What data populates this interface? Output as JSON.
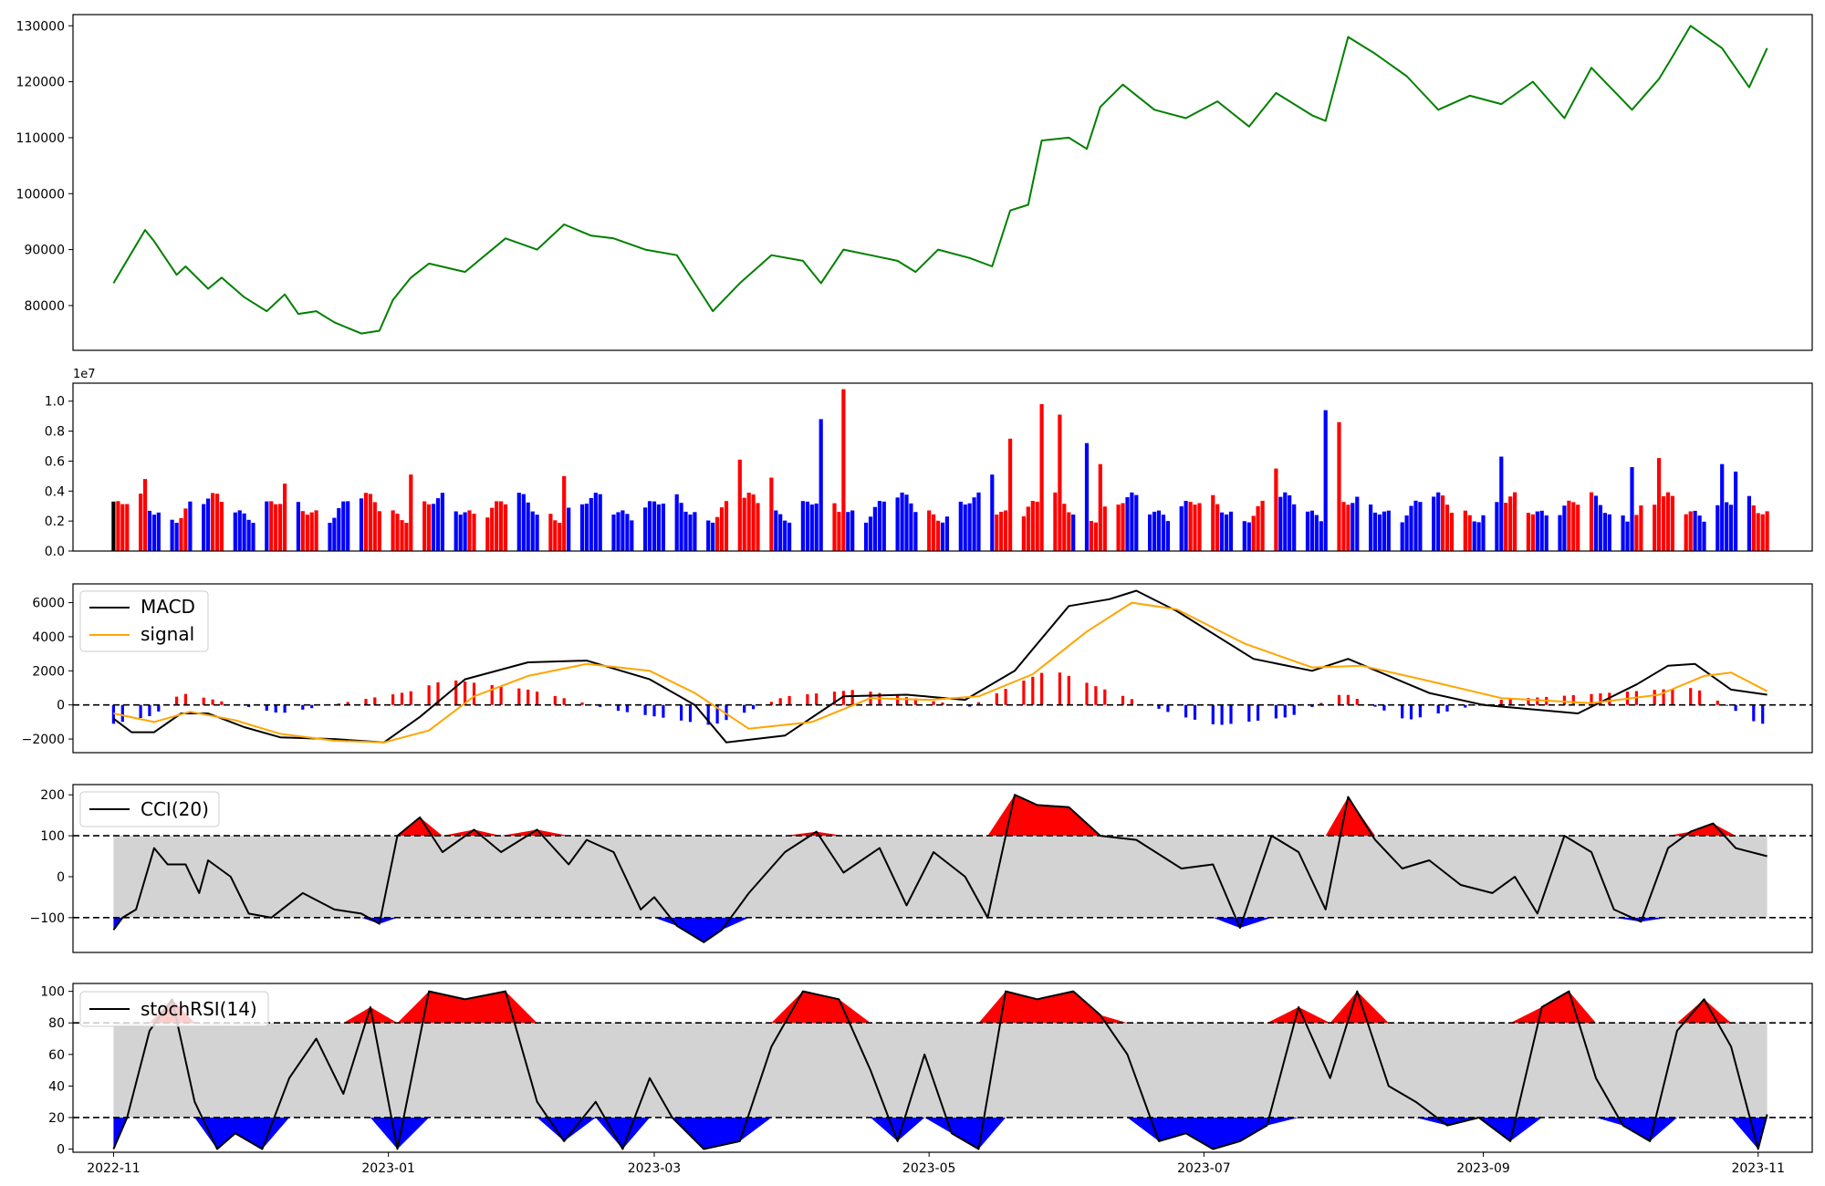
{
  "chart_data": [
    {
      "type": "line",
      "panel": "price",
      "title": "",
      "xlabel": "",
      "ylabel": "",
      "ylim": [
        72000,
        132000
      ],
      "ytick_labels": [
        "80000",
        "90000",
        "100000",
        "110000",
        "120000",
        "130000"
      ],
      "color": "#008000",
      "x": [
        "2022-11-01",
        "2022-11-08",
        "2022-11-10",
        "2022-11-15",
        "2022-11-17",
        "2022-11-22",
        "2022-11-25",
        "2022-11-30",
        "2022-12-05",
        "2022-12-09",
        "2022-12-12",
        "2022-12-16",
        "2022-12-20",
        "2022-12-26",
        "2022-12-30",
        "2023-01-02",
        "2023-01-06",
        "2023-01-10",
        "2023-01-18",
        "2023-01-27",
        "2023-02-03",
        "2023-02-09",
        "2023-02-15",
        "2023-02-20",
        "2023-02-27",
        "2023-03-06",
        "2023-03-10",
        "2023-03-14",
        "2023-03-20",
        "2023-03-27",
        "2023-04-03",
        "2023-04-07",
        "2023-04-12",
        "2023-04-18",
        "2023-04-24",
        "2023-04-28",
        "2023-05-03",
        "2023-05-10",
        "2023-05-15",
        "2023-05-19",
        "2023-05-23",
        "2023-05-26",
        "2023-06-01",
        "2023-06-05",
        "2023-06-08",
        "2023-06-13",
        "2023-06-20",
        "2023-06-27",
        "2023-07-04",
        "2023-07-11",
        "2023-07-17",
        "2023-07-25",
        "2023-07-28",
        "2023-08-02",
        "2023-08-08",
        "2023-08-15",
        "2023-08-22",
        "2023-08-29",
        "2023-09-05",
        "2023-09-12",
        "2023-09-19",
        "2023-09-25",
        "2023-10-04",
        "2023-10-10",
        "2023-10-13",
        "2023-10-17",
        "2023-10-24",
        "2023-10-30",
        "2023-11-03"
      ],
      "values": [
        84000,
        93500,
        91500,
        85500,
        87000,
        83000,
        85000,
        81500,
        79000,
        82000,
        78500,
        79000,
        77000,
        75000,
        75500,
        81000,
        85000,
        87500,
        86000,
        92000,
        90000,
        94500,
        92500,
        92000,
        90000,
        89000,
        84000,
        79000,
        84000,
        89000,
        88000,
        84000,
        90000,
        89000,
        88000,
        86000,
        90000,
        88500,
        87000,
        97000,
        98000,
        109500,
        110000,
        108000,
        115500,
        119500,
        115000,
        113500,
        116500,
        112000,
        118000,
        114000,
        113000,
        128000,
        125000,
        121000,
        115000,
        117500,
        116000,
        120000,
        113500,
        122500,
        115000,
        120500,
        124500,
        130000,
        126000,
        119000,
        126000
      ]
    },
    {
      "type": "bar",
      "panel": "volume",
      "scale_label": "1e7",
      "ylim": [
        0,
        1.12
      ],
      "ytick_labels": [
        "0.0",
        "0.2",
        "0.4",
        "0.6",
        "0.8",
        "1.0"
      ],
      "colors": {
        "up": "#ff0000",
        "down": "#0000ff",
        "flat": "#000000"
      },
      "x": [
        "2022-11-08",
        "2022-12-09",
        "2023-01-06",
        "2023-02-09",
        "2023-03-20",
        "2023-03-27",
        "2023-04-07",
        "2023-04-12",
        "2023-05-15",
        "2023-05-19",
        "2023-05-26",
        "2023-05-30",
        "2023-06-05",
        "2023-06-08",
        "2023-07-17",
        "2023-07-28",
        "2023-07-31",
        "2023-09-05",
        "2023-10-04",
        "2023-10-10",
        "2023-10-24",
        "2023-10-27"
      ],
      "values": [
        0.48,
        0.45,
        0.51,
        0.5,
        0.61,
        0.49,
        0.88,
        1.08,
        0.51,
        0.75,
        0.98,
        0.91,
        0.72,
        0.58,
        0.55,
        0.94,
        0.86,
        0.63,
        0.56,
        0.62,
        0.58,
        0.53
      ]
    },
    {
      "type": "line",
      "panel": "macd",
      "ylim": [
        -2800,
        7100
      ],
      "ytick_labels": [
        "−2000",
        "0",
        "2000",
        "4000",
        "6000"
      ],
      "zero_line": "dashed",
      "legend_position": "top-left",
      "series": [
        {
          "name": "MACD",
          "color": "#000000",
          "x": [
            "2022-11-01",
            "2022-11-05",
            "2022-11-10",
            "2022-11-16",
            "2022-11-22",
            "2022-11-30",
            "2022-12-08",
            "2022-12-20",
            "2022-12-31",
            "2023-01-08",
            "2023-01-18",
            "2023-02-01",
            "2023-02-14",
            "2023-02-28",
            "2023-03-10",
            "2023-03-17",
            "2023-03-30",
            "2023-04-12",
            "2023-04-26",
            "2023-05-09",
            "2023-05-20",
            "2023-06-01",
            "2023-06-10",
            "2023-06-16",
            "2023-06-25",
            "2023-07-12",
            "2023-07-25",
            "2023-08-02",
            "2023-08-20",
            "2023-09-01",
            "2023-09-22",
            "2023-10-05",
            "2023-10-12",
            "2023-10-18",
            "2023-10-26",
            "2023-11-03"
          ],
          "values": [
            -800,
            -1600,
            -1600,
            -500,
            -500,
            -1300,
            -1900,
            -2000,
            -2200,
            -700,
            1500,
            2500,
            2600,
            1500,
            0,
            -2200,
            -1800,
            500,
            600,
            300,
            2000,
            5800,
            6200,
            6700,
            5500,
            2700,
            2000,
            2700,
            700,
            0,
            -500,
            1200,
            2300,
            2400,
            900,
            600
          ]
        },
        {
          "name": "signal",
          "color": "#ffa500",
          "x": [
            "2022-11-01",
            "2022-11-10",
            "2022-11-18",
            "2022-11-28",
            "2022-12-08",
            "2022-12-20",
            "2022-12-31",
            "2023-01-10",
            "2023-01-20",
            "2023-02-01",
            "2023-02-14",
            "2023-02-28",
            "2023-03-10",
            "2023-03-22",
            "2023-04-05",
            "2023-04-18",
            "2023-05-01",
            "2023-05-12",
            "2023-05-24",
            "2023-06-05",
            "2023-06-15",
            "2023-06-25",
            "2023-07-10",
            "2023-07-25",
            "2023-08-05",
            "2023-08-20",
            "2023-09-05",
            "2023-09-25",
            "2023-10-10",
            "2023-10-20",
            "2023-10-26",
            "2023-11-03"
          ],
          "values": [
            -500,
            -1000,
            -400,
            -900,
            -1700,
            -2100,
            -2200,
            -1500,
            500,
            1700,
            2400,
            2000,
            700,
            -1400,
            -1000,
            400,
            300,
            500,
            1800,
            4300,
            6000,
            5600,
            3600,
            2200,
            2300,
            1400,
            400,
            100,
            600,
            1700,
            1900,
            800
          ]
        }
      ],
      "histogram": {
        "colors": {
          "positive": "#ff0000",
          "negative": "#0000ff"
        },
        "x": [
          "2022-11-01",
          "2022-11-10",
          "2022-11-16",
          "2022-12-08",
          "2023-01-06",
          "2023-01-14",
          "2023-02-01",
          "2023-02-20",
          "2023-03-14",
          "2023-03-30",
          "2023-04-15",
          "2023-05-10",
          "2023-05-20",
          "2023-05-28",
          "2023-06-08",
          "2023-06-25",
          "2023-07-04",
          "2023-07-20",
          "2023-08-01",
          "2023-08-15",
          "2023-09-05",
          "2023-10-10",
          "2023-10-18",
          "2023-11-01"
        ],
        "values": [
          -1100,
          -600,
          700,
          -500,
          800,
          1500,
          900,
          -300,
          -1200,
          500,
          900,
          -100,
          1200,
          2100,
          1000,
          -600,
          -1200,
          -700,
          700,
          -900,
          300,
          900,
          1000,
          -1100
        ]
      }
    },
    {
      "type": "line",
      "panel": "cci",
      "ylim": [
        -185,
        225
      ],
      "ytick_labels": [
        "−100",
        "0",
        "100",
        "200"
      ],
      "thresholds": [
        100,
        -100
      ],
      "band_color": "#d3d3d3",
      "above_fill": "#ff0000",
      "below_fill": "#0000ff",
      "legend_position": "top-left",
      "series": [
        {
          "name": "CCI(20)",
          "color": "#000000",
          "x": [
            "2022-11-01",
            "2022-11-03",
            "2022-11-06",
            "2022-11-10",
            "2022-11-13",
            "2022-11-17",
            "2022-11-20",
            "2022-11-22",
            "2022-11-27",
            "2022-12-01",
            "2022-12-06",
            "2022-12-13",
            "2022-12-20",
            "2022-12-26",
            "2022-12-30",
            "2023-01-03",
            "2023-01-08",
            "2023-01-13",
            "2023-01-20",
            "2023-01-26",
            "2023-02-03",
            "2023-02-10",
            "2023-02-14",
            "2023-02-20",
            "2023-02-26",
            "2023-03-01",
            "2023-03-06",
            "2023-03-12",
            "2023-03-16",
            "2023-03-22",
            "2023-03-30",
            "2023-04-06",
            "2023-04-12",
            "2023-04-20",
            "2023-04-26",
            "2023-05-02",
            "2023-05-09",
            "2023-05-14",
            "2023-05-20",
            "2023-05-25",
            "2023-06-01",
            "2023-06-08",
            "2023-06-16",
            "2023-06-26",
            "2023-07-03",
            "2023-07-09",
            "2023-07-16",
            "2023-07-22",
            "2023-07-28",
            "2023-08-02",
            "2023-08-08",
            "2023-08-14",
            "2023-08-20",
            "2023-08-27",
            "2023-09-03",
            "2023-09-08",
            "2023-09-13",
            "2023-09-19",
            "2023-09-25",
            "2023-09-30",
            "2023-10-06",
            "2023-10-12",
            "2023-10-17",
            "2023-10-22",
            "2023-10-27",
            "2023-11-03"
          ],
          "values": [
            -130,
            -100,
            -80,
            70,
            30,
            30,
            -40,
            40,
            0,
            -90,
            -100,
            -40,
            -80,
            -90,
            -115,
            100,
            145,
            60,
            115,
            60,
            115,
            30,
            90,
            60,
            -80,
            -50,
            -120,
            -160,
            -130,
            -40,
            60,
            110,
            10,
            70,
            -70,
            60,
            0,
            -100,
            200,
            175,
            170,
            100,
            90,
            20,
            30,
            -125,
            100,
            60,
            -80,
            195,
            90,
            20,
            40,
            -20,
            -40,
            0,
            -90,
            100,
            60,
            -80,
            -110,
            70,
            110,
            130,
            70,
            50
          ]
        }
      ]
    },
    {
      "type": "line",
      "panel": "stochrsi",
      "ylim": [
        -2,
        105
      ],
      "ytick_labels": [
        "0",
        "20",
        "40",
        "60",
        "80",
        "100"
      ],
      "thresholds": [
        80,
        20
      ],
      "band_color": "#d3d3d3",
      "above_fill": "#ff0000",
      "below_fill": "#0000ff",
      "legend_position": "top-left",
      "series": [
        {
          "name": "stochRSI(14)",
          "color": "#000000",
          "x": [
            "2022-11-01",
            "2022-11-04",
            "2022-11-09",
            "2022-11-14",
            "2022-11-19",
            "2022-11-24",
            "2022-11-28",
            "2022-12-04",
            "2022-12-10",
            "2022-12-16",
            "2022-12-22",
            "2022-12-28",
            "2023-01-03",
            "2023-01-10",
            "2023-01-18",
            "2023-01-27",
            "2023-02-03",
            "2023-02-09",
            "2023-02-16",
            "2023-02-22",
            "2023-02-28",
            "2023-03-05",
            "2023-03-12",
            "2023-03-20",
            "2023-03-27",
            "2023-04-03",
            "2023-04-11",
            "2023-04-18",
            "2023-04-24",
            "2023-04-30",
            "2023-05-06",
            "2023-05-12",
            "2023-05-18",
            "2023-05-25",
            "2023-06-02",
            "2023-06-08",
            "2023-06-14",
            "2023-06-21",
            "2023-06-27",
            "2023-07-03",
            "2023-07-09",
            "2023-07-15",
            "2023-07-22",
            "2023-07-29",
            "2023-08-04",
            "2023-08-11",
            "2023-08-17",
            "2023-08-24",
            "2023-08-31",
            "2023-09-07",
            "2023-09-14",
            "2023-09-20",
            "2023-09-26",
            "2023-10-02",
            "2023-10-08",
            "2023-10-14",
            "2023-10-20",
            "2023-10-26",
            "2023-11-01",
            "2023-11-03"
          ],
          "values": [
            0,
            20,
            75,
            95,
            30,
            0,
            10,
            0,
            45,
            70,
            35,
            90,
            0,
            100,
            95,
            100,
            30,
            5,
            30,
            0,
            45,
            20,
            0,
            5,
            65,
            100,
            95,
            50,
            5,
            60,
            10,
            0,
            100,
            95,
            100,
            85,
            60,
            5,
            10,
            0,
            5,
            15,
            90,
            45,
            100,
            40,
            30,
            15,
            20,
            5,
            90,
            100,
            45,
            15,
            5,
            75,
            95,
            65,
            0,
            22
          ]
        }
      ]
    }
  ],
  "xaxis": {
    "tick_labels": [
      "2022-11",
      "2023-01",
      "2023-03",
      "2023-05",
      "2023-07",
      "2023-09",
      "2023-11"
    ]
  }
}
